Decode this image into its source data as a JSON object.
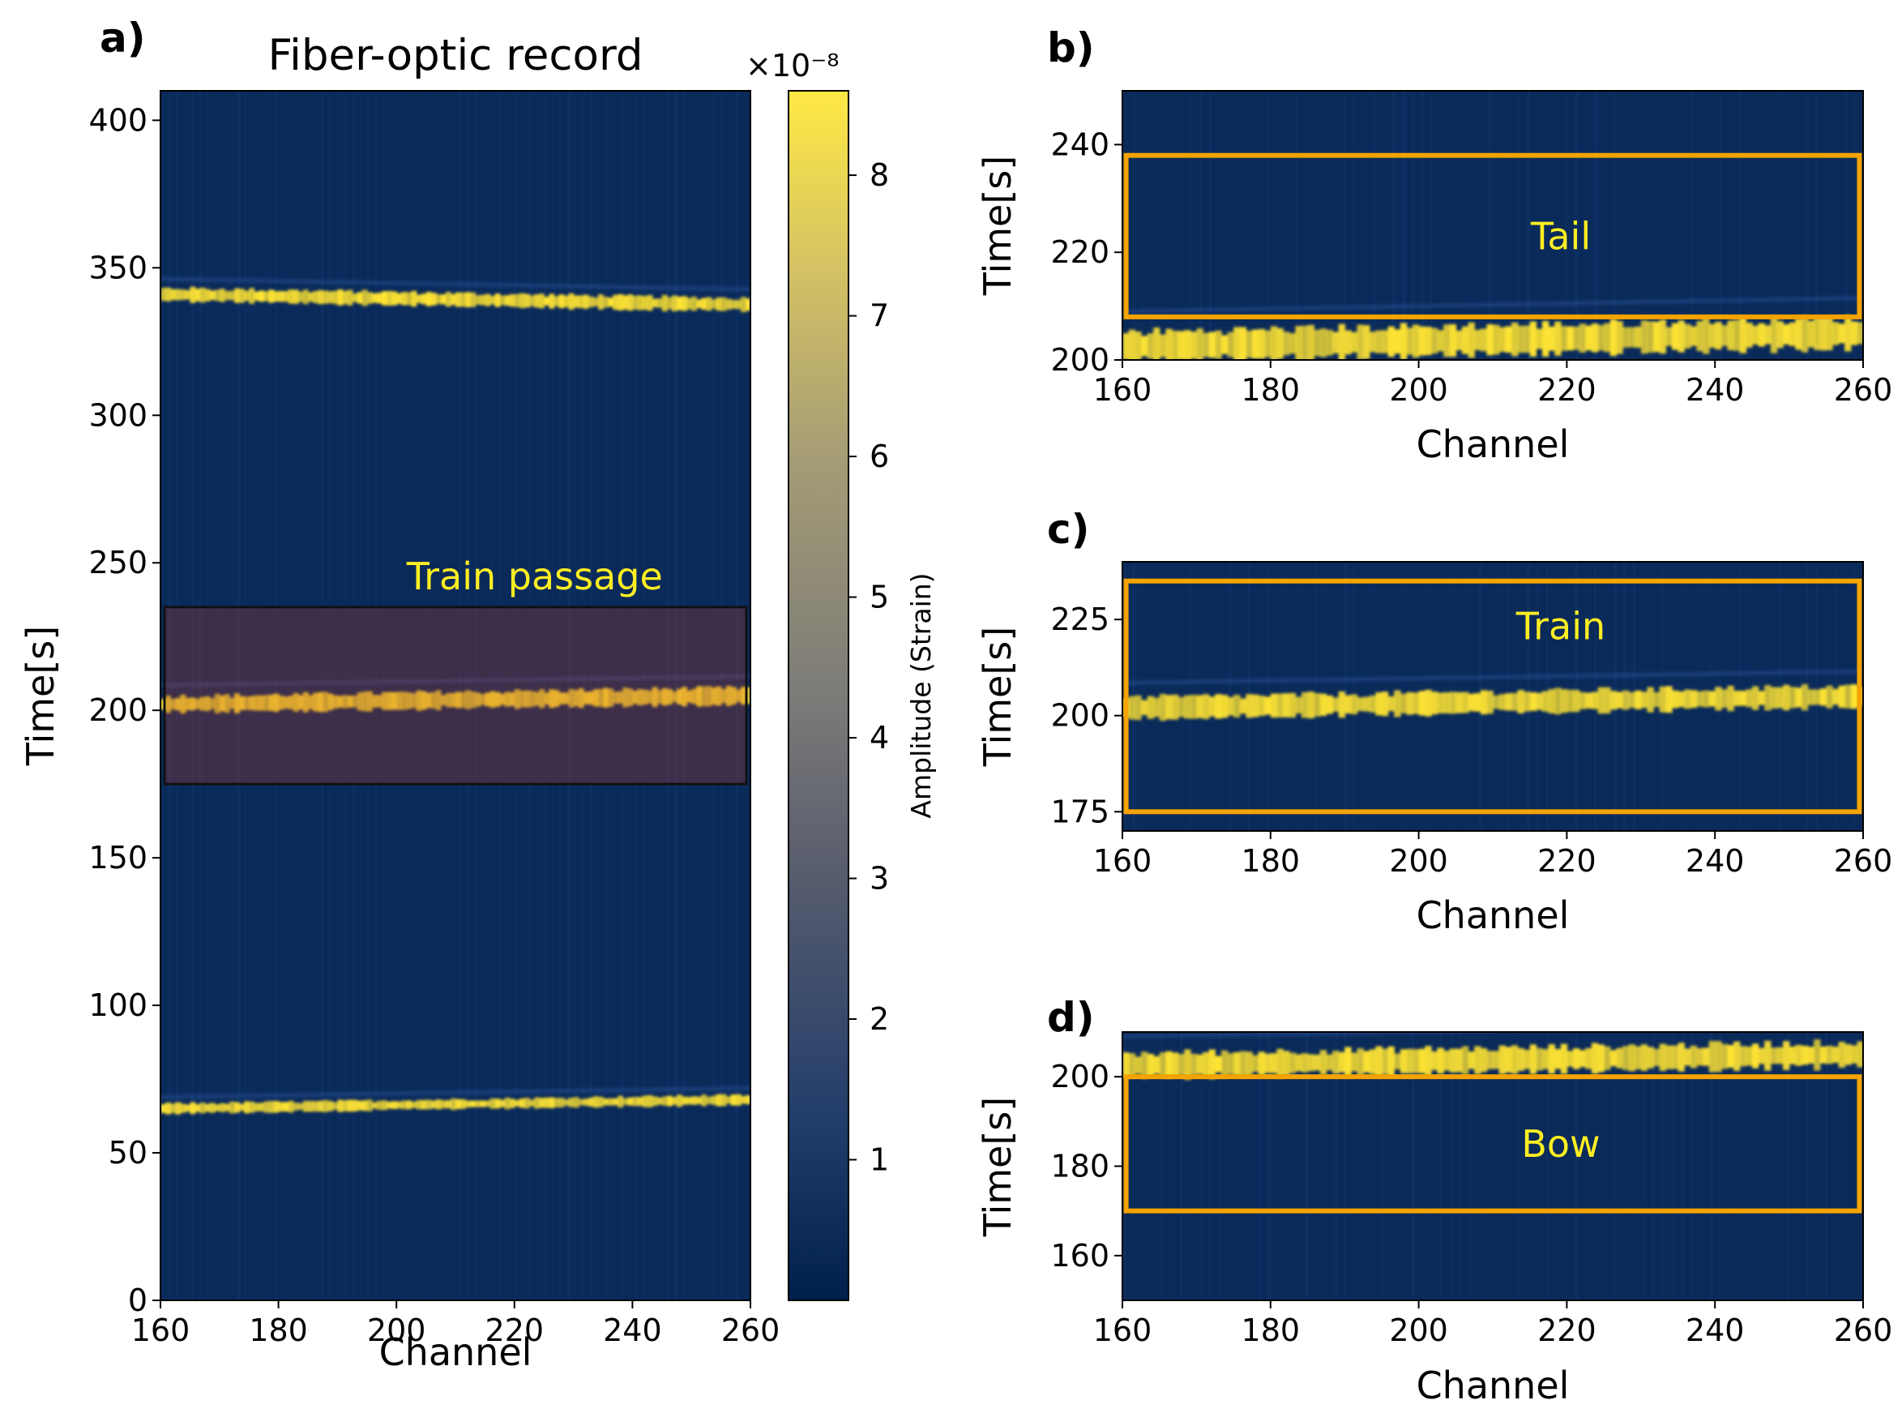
{
  "chart_data": [
    {
      "panel": "a)",
      "type": "heatmap",
      "title": "Fiber-optic record",
      "xlabel": "Channel",
      "ylabel": "Time[s]",
      "xlim": [
        160,
        260
      ],
      "ylim": [
        0,
        410
      ],
      "xticks": [
        160,
        180,
        200,
        220,
        240,
        260
      ],
      "yticks": [
        0,
        50,
        100,
        150,
        200,
        250,
        300,
        350,
        400
      ],
      "bands": [
        {
          "t_start": 341,
          "t_end": 337.5,
          "width": 4
        },
        {
          "t_start": 202,
          "t_end": 205,
          "width": 5
        },
        {
          "t_start": 65,
          "t_end": 68,
          "width": 3
        }
      ],
      "highlight": {
        "label": "Train passage",
        "x0": 160,
        "x1": 260,
        "y0": 175,
        "y1": 235,
        "color": "#c23b22"
      },
      "colorbar": {
        "label": "Amplitude (Strain)",
        "multiplier": "×10⁻⁸",
        "vmin": 0,
        "vmax": 8.6,
        "ticks": [
          1,
          2,
          3,
          4,
          5,
          6,
          7,
          8
        ]
      }
    },
    {
      "panel": "b)",
      "type": "heatmap",
      "xlabel": "Channel",
      "ylabel": "Time[s]",
      "xlim": [
        160,
        260
      ],
      "ylim": [
        200,
        250
      ],
      "xticks": [
        160,
        180,
        200,
        220,
        240,
        260
      ],
      "yticks": [
        200,
        220,
        240
      ],
      "bands": [
        {
          "t_start": 202.5,
          "t_end": 205,
          "width": 5
        }
      ],
      "box": {
        "label": "Tail",
        "x0": 160.5,
        "x1": 259.5,
        "y0": 208,
        "y1": 238,
        "color": "#f5a300"
      }
    },
    {
      "panel": "c)",
      "type": "heatmap",
      "xlabel": "Channel",
      "ylabel": "Time[s]",
      "xlim": [
        160,
        260
      ],
      "ylim": [
        170,
        240
      ],
      "xticks": [
        160,
        180,
        200,
        220,
        240,
        260
      ],
      "yticks": [
        175,
        200,
        225
      ],
      "bands": [
        {
          "t_start": 202,
          "t_end": 205,
          "width": 5
        }
      ],
      "box": {
        "label": "Train",
        "x0": 160.5,
        "x1": 259.5,
        "y0": 175,
        "y1": 235,
        "color": "#f5a300"
      }
    },
    {
      "panel": "d)",
      "type": "heatmap",
      "xlabel": "Channel",
      "ylabel": "Time[s]",
      "xlim": [
        160,
        260
      ],
      "ylim": [
        150,
        210
      ],
      "xticks": [
        160,
        180,
        200,
        220,
        240,
        260
      ],
      "yticks": [
        160,
        180,
        200
      ],
      "bands": [
        {
          "t_start": 202.5,
          "t_end": 205,
          "width": 5
        }
      ],
      "box": {
        "label": "Bow",
        "x0": 160.5,
        "x1": 259.5,
        "y0": 170,
        "y1": 200,
        "color": "#f5a300"
      }
    }
  ],
  "colors": {
    "background": "#0a2a5a",
    "band": "#ffe433",
    "accent": "#f5a300"
  }
}
